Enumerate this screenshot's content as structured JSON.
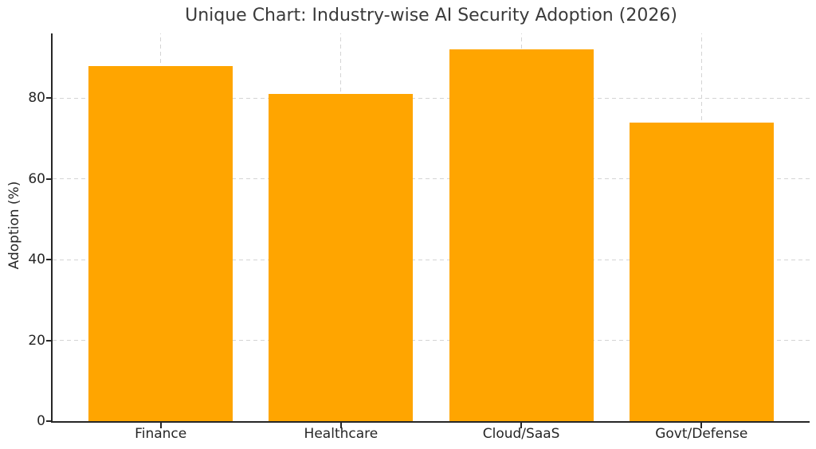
{
  "chart_data": {
    "type": "bar",
    "title": "Unique Chart: Industry-wise AI Security Adoption (2026)",
    "categories": [
      "Finance",
      "Healthcare",
      "Cloud/SaaS",
      "Govt/Defense"
    ],
    "values": [
      88,
      81,
      92,
      74
    ],
    "xlabel": "",
    "ylabel": "Adoption (%)",
    "ylim": [
      0,
      96
    ],
    "yticks": [
      0,
      20,
      40,
      60,
      80
    ],
    "bar_width_fraction": 0.8,
    "xlim": [
      -0.6,
      3.6
    ],
    "grid": "dashed, both axes, below bars",
    "legend": "none",
    "colors": {
      "bar": "#FFA500",
      "grid": "#d4d4d4",
      "spine": "#262626",
      "title_text": "#3a3a3a",
      "tick_text": "#262626",
      "background": "#ffffff"
    }
  }
}
